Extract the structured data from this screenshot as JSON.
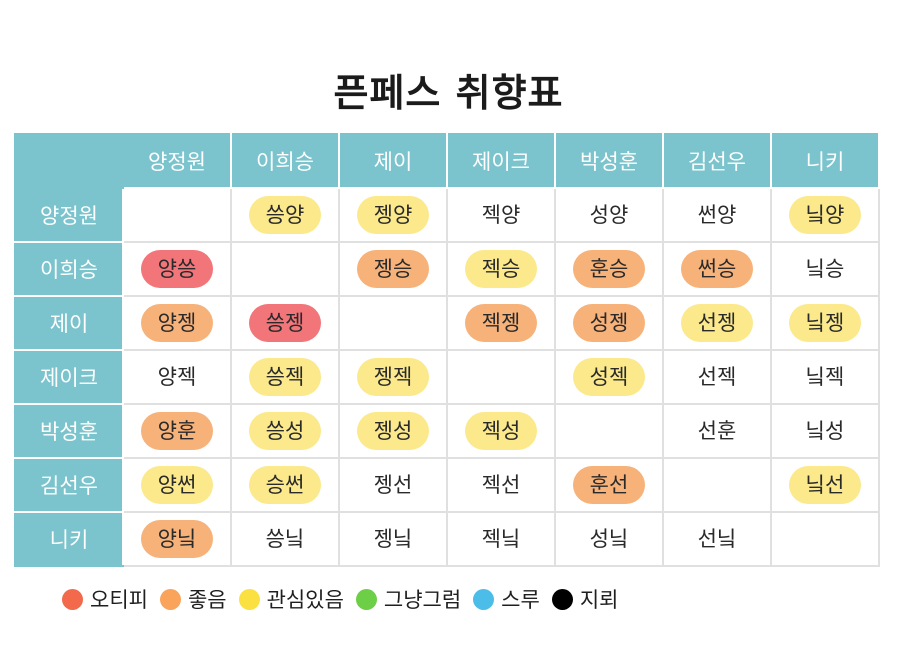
{
  "title": "픈페스 취향표",
  "columns": [
    "양정원",
    "이희승",
    "제이",
    "제이크",
    "박성훈",
    "김선우",
    "니키"
  ],
  "rows": [
    {
      "name": "양정원",
      "cells": [
        {
          "text": "",
          "level": "none"
        },
        {
          "text": "씅양",
          "level": "yellow"
        },
        {
          "text": "젱양",
          "level": "yellow"
        },
        {
          "text": "젝양",
          "level": "none"
        },
        {
          "text": "성양",
          "level": "none"
        },
        {
          "text": "썬양",
          "level": "none"
        },
        {
          "text": "닠양",
          "level": "yellow"
        }
      ]
    },
    {
      "name": "이희승",
      "cells": [
        {
          "text": "양씅",
          "level": "red"
        },
        {
          "text": "",
          "level": "none"
        },
        {
          "text": "젱승",
          "level": "orange"
        },
        {
          "text": "젝승",
          "level": "yellow"
        },
        {
          "text": "훈승",
          "level": "orange"
        },
        {
          "text": "썬승",
          "level": "orange"
        },
        {
          "text": "닠승",
          "level": "none"
        }
      ]
    },
    {
      "name": "제이",
      "cells": [
        {
          "text": "양젱",
          "level": "orange"
        },
        {
          "text": "씅젱",
          "level": "red"
        },
        {
          "text": "",
          "level": "none"
        },
        {
          "text": "젝젱",
          "level": "orange"
        },
        {
          "text": "성젱",
          "level": "orange"
        },
        {
          "text": "선젱",
          "level": "yellow"
        },
        {
          "text": "닠젱",
          "level": "yellow"
        }
      ]
    },
    {
      "name": "제이크",
      "cells": [
        {
          "text": "양젝",
          "level": "none"
        },
        {
          "text": "씅젝",
          "level": "yellow"
        },
        {
          "text": "젱젝",
          "level": "yellow"
        },
        {
          "text": "",
          "level": "none"
        },
        {
          "text": "성젝",
          "level": "yellow"
        },
        {
          "text": "선젝",
          "level": "none"
        },
        {
          "text": "닠젝",
          "level": "none"
        }
      ]
    },
    {
      "name": "박성훈",
      "cells": [
        {
          "text": "양훈",
          "level": "orange"
        },
        {
          "text": "씅성",
          "level": "yellow"
        },
        {
          "text": "젱성",
          "level": "yellow"
        },
        {
          "text": "젝성",
          "level": "yellow"
        },
        {
          "text": "",
          "level": "none"
        },
        {
          "text": "선훈",
          "level": "none"
        },
        {
          "text": "닠성",
          "level": "none"
        }
      ]
    },
    {
      "name": "김선우",
      "cells": [
        {
          "text": "양썬",
          "level": "yellow"
        },
        {
          "text": "승썬",
          "level": "yellow"
        },
        {
          "text": "젱선",
          "level": "none"
        },
        {
          "text": "젝선",
          "level": "none"
        },
        {
          "text": "훈선",
          "level": "orange"
        },
        {
          "text": "",
          "level": "none"
        },
        {
          "text": "닠선",
          "level": "yellow"
        }
      ]
    },
    {
      "name": "니키",
      "cells": [
        {
          "text": "양닠",
          "level": "orange"
        },
        {
          "text": "씅닠",
          "level": "none"
        },
        {
          "text": "젱닠",
          "level": "none"
        },
        {
          "text": "젝닠",
          "level": "none"
        },
        {
          "text": "성닠",
          "level": "none"
        },
        {
          "text": "선닠",
          "level": "none"
        },
        {
          "text": "",
          "level": "none"
        }
      ]
    }
  ],
  "legend": [
    {
      "label": "오티피",
      "color": "#f26a4b"
    },
    {
      "label": "좋음",
      "color": "#f9a35b"
    },
    {
      "label": "관심있음",
      "color": "#fbe041"
    },
    {
      "label": "그냥그럼",
      "color": "#6ccf45"
    },
    {
      "label": "스루",
      "color": "#4bbde8"
    },
    {
      "label": "지뢰",
      "color": "#000000"
    }
  ]
}
